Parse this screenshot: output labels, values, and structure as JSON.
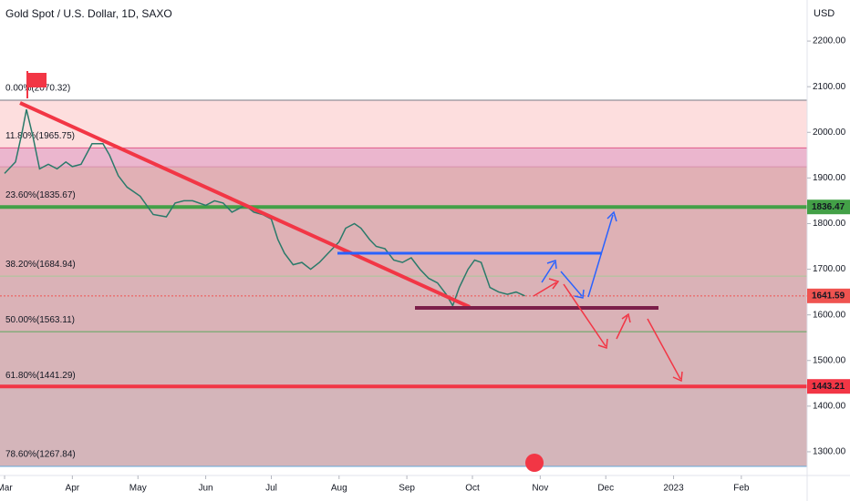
{
  "chart_data": {
    "type": "line",
    "title": "Gold Spot / U.S. Dollar, 1D, SAXO",
    "y_axis_label": "USD",
    "color": "#2a7a6a",
    "x": [
      0,
      5,
      8,
      10,
      13,
      16,
      20,
      24,
      28,
      31,
      35,
      40,
      45,
      48,
      52,
      56,
      62,
      68,
      74,
      78,
      82,
      86,
      92,
      96,
      100,
      104,
      110,
      114,
      118,
      122,
      125,
      128,
      132,
      136,
      140,
      144,
      148,
      153,
      156,
      160,
      163,
      167,
      170,
      174,
      178,
      182,
      186,
      190,
      194,
      198,
      202,
      205,
      208,
      212,
      215,
      218,
      222,
      226,
      230,
      234,
      238
    ],
    "values": [
      1910,
      1935,
      2000,
      2050,
      1990,
      1920,
      1930,
      1920,
      1935,
      1925,
      1930,
      1975,
      1975,
      1950,
      1905,
      1880,
      1860,
      1820,
      1815,
      1845,
      1850,
      1850,
      1840,
      1850,
      1845,
      1825,
      1840,
      1825,
      1820,
      1810,
      1765,
      1735,
      1710,
      1715,
      1700,
      1715,
      1735,
      1760,
      1790,
      1800,
      1790,
      1765,
      1750,
      1745,
      1720,
      1715,
      1725,
      1700,
      1680,
      1670,
      1645,
      1620,
      1660,
      1700,
      1720,
      1715,
      1660,
      1650,
      1645,
      1650,
      1641.59
    ],
    "xlim": [
      -2.1,
      367.1
    ],
    "ylim": [
      1248,
      2290
    ],
    "xticks": [
      {
        "value": 0,
        "label": "Mar"
      },
      {
        "value": 31,
        "label": "Apr"
      },
      {
        "value": 61,
        "label": "May"
      },
      {
        "value": 92,
        "label": "Jun"
      },
      {
        "value": 122,
        "label": "Jul"
      },
      {
        "value": 153,
        "label": "Aug"
      },
      {
        "value": 184,
        "label": "Sep"
      },
      {
        "value": 214,
        "label": "Oct"
      },
      {
        "value": 245,
        "label": "Nov"
      },
      {
        "value": 275,
        "label": "Dec"
      },
      {
        "value": 306,
        "label": "2023"
      },
      {
        "value": 337,
        "label": "Feb"
      }
    ],
    "yticks": [
      {
        "value": 1300,
        "label": "1300.00"
      },
      {
        "value": 1400,
        "label": "1400.00"
      },
      {
        "value": 1500,
        "label": "1500.00"
      },
      {
        "value": 1600,
        "label": "1600.00"
      },
      {
        "value": 1700,
        "label": "1700.00"
      },
      {
        "value": 1800,
        "label": "1800.00"
      },
      {
        "value": 1900,
        "label": "1900.00"
      },
      {
        "value": 2000,
        "label": "2000.00"
      },
      {
        "value": 2100,
        "label": "2100.00"
      },
      {
        "value": 2200,
        "label": "2200.00"
      }
    ],
    "levels": [
      {
        "value": 2070.32,
        "label": "0.00%(2070.32)",
        "color": "#787b86",
        "band_color": "#fdd8d8"
      },
      {
        "value": 1965.75,
        "label": "11.80%(1965.75)",
        "color": "#e05a8a",
        "band_color": "#e8a9c6"
      },
      {
        "value": 1924.5,
        "label": null,
        "color": "#d88fae",
        "band_color": "#dca2a8"
      },
      {
        "value": 1835.67,
        "label": "23.60%(1835.67)",
        "color": "#d24a4a",
        "band_color": "#d8a3a8"
      },
      {
        "value": 1684.94,
        "label": "38.20%(1684.94)",
        "color": "#a8c898",
        "band_color": "#d4a5aa"
      },
      {
        "value": 1563.11,
        "label": "50.00%(1563.11)",
        "color": "#5ca85c",
        "band_color": "#d0a7ab"
      },
      {
        "value": 1441.29,
        "label": "61.80%(1441.29)",
        "color": "#2c9a8a",
        "band_color": "#cda8ae"
      },
      {
        "value": 1267.84,
        "label": "78.60%(1267.84)",
        "color": "#64a8d8",
        "band_color": "#ffffff"
      }
    ],
    "price_labels": [
      {
        "value": 1836.47,
        "color": "#43a047",
        "line_width": 4
      },
      {
        "value": 1641.59,
        "color": "#ef5350",
        "line_width": 1
      },
      {
        "value": 1443.21,
        "color": "#f23645",
        "line_width": 4
      }
    ]
  }
}
